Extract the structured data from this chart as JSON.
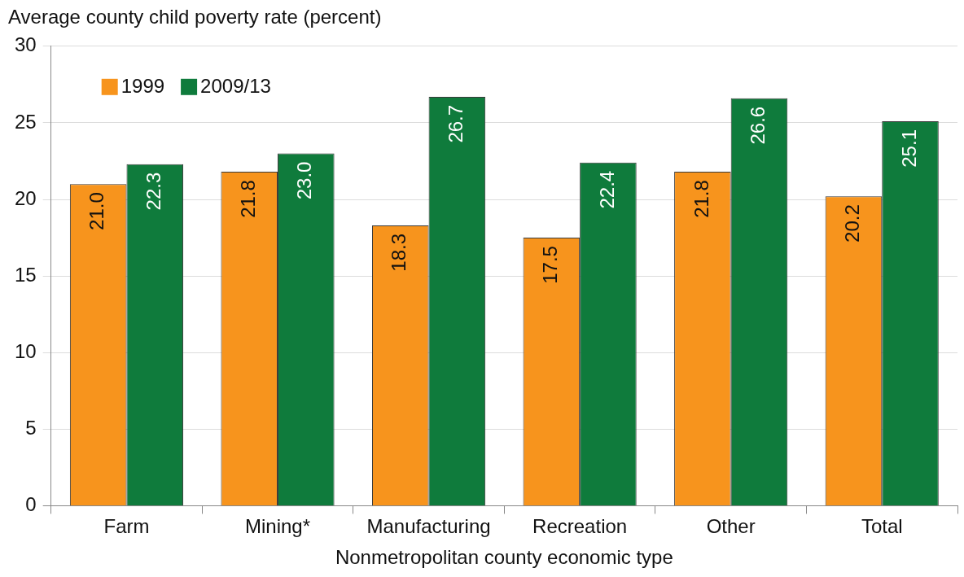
{
  "chart_data": {
    "type": "bar",
    "ylabel": "Average county child poverty rate (percent)",
    "xlabel": "Nonmetropolitan county economic type",
    "categories": [
      "Farm",
      "Mining*",
      "Manufacturing",
      "Recreation",
      "Other",
      "Total"
    ],
    "series": [
      {
        "name": "1999",
        "color": "#f7941d",
        "values": [
          21.0,
          21.8,
          18.3,
          17.5,
          21.8,
          20.2
        ],
        "value_labels": [
          "21.0",
          "21.8",
          "18.3",
          "17.5",
          "21.8",
          "20.2"
        ]
      },
      {
        "name": "2009/13",
        "color": "#0f7b3c",
        "values": [
          22.3,
          23.0,
          26.7,
          22.4,
          26.6,
          25.1
        ],
        "value_labels": [
          "22.3",
          "23.0",
          "26.7",
          "22.4",
          "26.6",
          "25.1"
        ]
      }
    ],
    "ylim": [
      0,
      30
    ],
    "yticks": [
      0,
      5,
      10,
      15,
      20,
      25,
      30
    ],
    "grid": "y",
    "legend": "top left"
  }
}
